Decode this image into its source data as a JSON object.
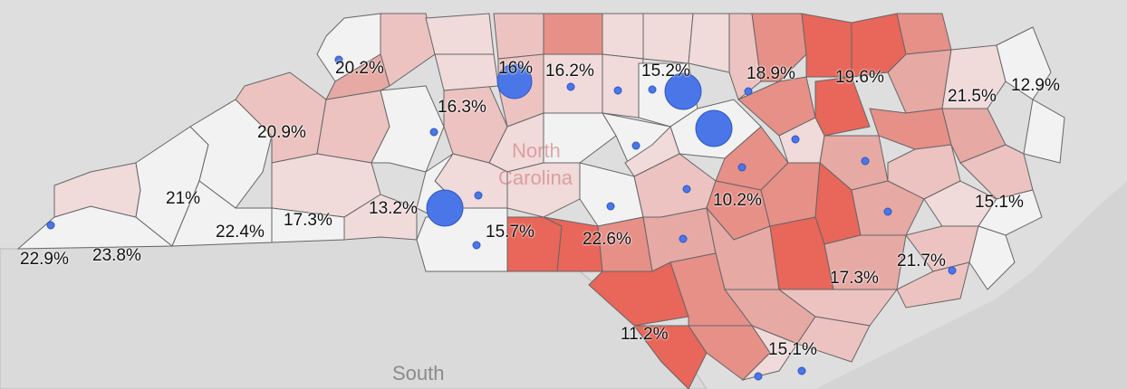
{
  "map": {
    "state_label_line1": "North",
    "state_label_line2": "Carolina",
    "neighbor_label": "South",
    "legend_colors": {
      "low": "#f2f2f2",
      "mid": "#e6a9a4",
      "high": "#e8665a",
      "point": "#4a76e8",
      "border": "#666666",
      "land_outside": "#dcdcdc",
      "water": "#d0d0d0"
    },
    "value_labels": [
      "20.2%",
      "16%",
      "16.2%",
      "15.2%",
      "18.9%",
      "19.6%",
      "21.5%",
      "12.9%",
      "16.3%",
      "20.9%",
      "21%",
      "13.2%",
      "17.3%",
      "22.4%",
      "22.9%",
      "23.8%",
      "15.7%",
      "22.6%",
      "10.2%",
      "15.1%",
      "21.7%",
      "17.3%",
      "11.2%",
      "15.1%"
    ]
  }
}
